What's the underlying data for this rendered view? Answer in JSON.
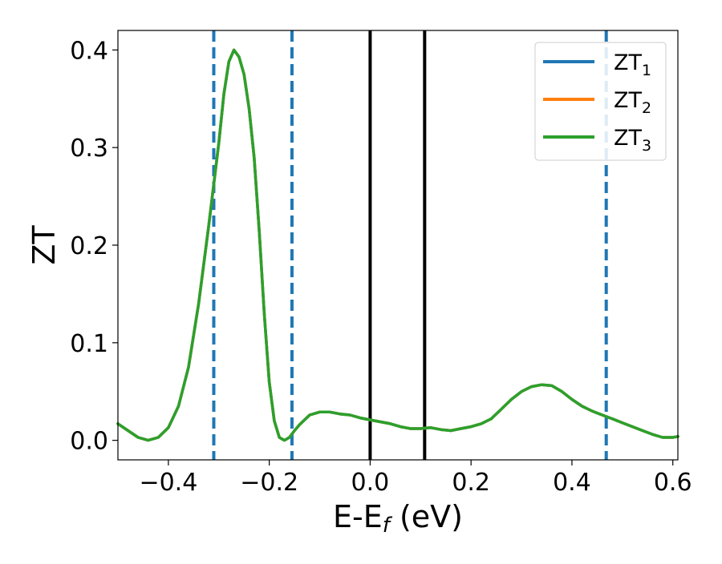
{
  "chart_data": {
    "type": "line",
    "xlabel": "E-E",
    "xlabel_sub": "f",
    "xlabel_unit": " (eV)",
    "ylabel": "ZT",
    "xlim": [
      -0.5,
      0.61
    ],
    "ylim": [
      -0.02,
      0.42
    ],
    "xticks": [
      -0.4,
      -0.2,
      0.0,
      0.2,
      0.4,
      0.6
    ],
    "xtick_labels": [
      "−0.4",
      "−0.2",
      "0.0",
      "0.2",
      "0.4",
      "0.6"
    ],
    "yticks": [
      0.0,
      0.1,
      0.2,
      0.3,
      0.4
    ],
    "ytick_labels": [
      "0.0",
      "0.1",
      "0.2",
      "0.3",
      "0.4"
    ],
    "grid": false,
    "legend_position": "top-right",
    "colors": {
      "zt1": "#1f77b4",
      "zt2": "#ff7f0e",
      "zt3": "#2ca02c",
      "solid_lines": "#000000",
      "dashed_lines": "#1f77b4"
    },
    "vlines_solid": [
      0.0,
      0.108
    ],
    "vlines_dashed": [
      -0.31,
      -0.155,
      0.468
    ],
    "x": [
      -0.5,
      -0.48,
      -0.46,
      -0.44,
      -0.42,
      -0.4,
      -0.38,
      -0.36,
      -0.34,
      -0.32,
      -0.3,
      -0.29,
      -0.28,
      -0.27,
      -0.26,
      -0.25,
      -0.24,
      -0.23,
      -0.22,
      -0.21,
      -0.2,
      -0.19,
      -0.18,
      -0.17,
      -0.16,
      -0.15,
      -0.14,
      -0.12,
      -0.1,
      -0.08,
      -0.06,
      -0.04,
      -0.02,
      0.0,
      0.02,
      0.04,
      0.06,
      0.08,
      0.1,
      0.12,
      0.14,
      0.16,
      0.18,
      0.2,
      0.22,
      0.24,
      0.26,
      0.28,
      0.3,
      0.32,
      0.34,
      0.36,
      0.38,
      0.4,
      0.42,
      0.44,
      0.46,
      0.48,
      0.5,
      0.52,
      0.54,
      0.56,
      0.58,
      0.6,
      0.61
    ],
    "series": [
      {
        "name": "ZT",
        "name_sub": "1",
        "values": [
          0.017,
          0.01,
          0.003,
          0.0,
          0.003,
          0.013,
          0.035,
          0.075,
          0.14,
          0.22,
          0.305,
          0.355,
          0.388,
          0.4,
          0.393,
          0.375,
          0.34,
          0.29,
          0.215,
          0.13,
          0.06,
          0.02,
          0.003,
          0.0,
          0.003,
          0.01,
          0.016,
          0.026,
          0.029,
          0.029,
          0.027,
          0.026,
          0.023,
          0.021,
          0.019,
          0.017,
          0.014,
          0.012,
          0.012,
          0.013,
          0.011,
          0.01,
          0.012,
          0.014,
          0.017,
          0.022,
          0.032,
          0.042,
          0.05,
          0.055,
          0.057,
          0.056,
          0.05,
          0.042,
          0.035,
          0.03,
          0.026,
          0.022,
          0.018,
          0.014,
          0.01,
          0.006,
          0.003,
          0.003,
          0.004
        ]
      },
      {
        "name": "ZT",
        "name_sub": "2",
        "values": [
          0.017,
          0.01,
          0.003,
          0.0,
          0.003,
          0.013,
          0.035,
          0.075,
          0.14,
          0.22,
          0.305,
          0.355,
          0.388,
          0.4,
          0.393,
          0.375,
          0.34,
          0.29,
          0.215,
          0.13,
          0.06,
          0.02,
          0.003,
          0.0,
          0.003,
          0.01,
          0.016,
          0.026,
          0.029,
          0.029,
          0.027,
          0.026,
          0.023,
          0.021,
          0.019,
          0.017,
          0.014,
          0.012,
          0.012,
          0.013,
          0.011,
          0.01,
          0.012,
          0.014,
          0.017,
          0.022,
          0.032,
          0.042,
          0.05,
          0.055,
          0.057,
          0.056,
          0.05,
          0.042,
          0.035,
          0.03,
          0.026,
          0.022,
          0.018,
          0.014,
          0.01,
          0.006,
          0.003,
          0.003,
          0.004
        ]
      },
      {
        "name": "ZT",
        "name_sub": "3",
        "values": [
          0.017,
          0.01,
          0.003,
          0.0,
          0.003,
          0.013,
          0.035,
          0.075,
          0.14,
          0.22,
          0.305,
          0.355,
          0.388,
          0.4,
          0.393,
          0.375,
          0.34,
          0.29,
          0.215,
          0.13,
          0.06,
          0.02,
          0.003,
          0.0,
          0.003,
          0.01,
          0.016,
          0.026,
          0.029,
          0.029,
          0.027,
          0.026,
          0.023,
          0.021,
          0.019,
          0.017,
          0.014,
          0.012,
          0.012,
          0.013,
          0.011,
          0.01,
          0.012,
          0.014,
          0.017,
          0.022,
          0.032,
          0.042,
          0.05,
          0.055,
          0.057,
          0.056,
          0.05,
          0.042,
          0.035,
          0.03,
          0.026,
          0.022,
          0.018,
          0.014,
          0.01,
          0.006,
          0.003,
          0.003,
          0.004
        ]
      }
    ]
  }
}
